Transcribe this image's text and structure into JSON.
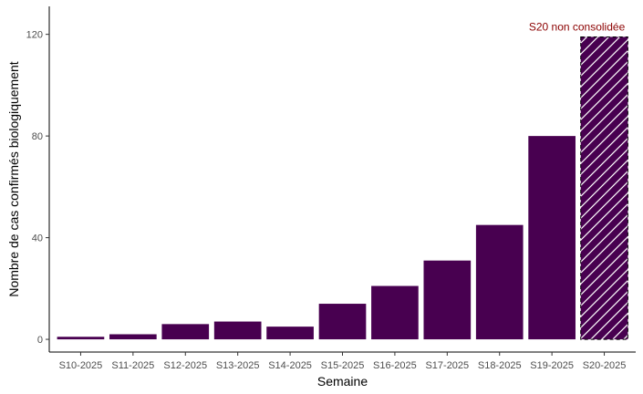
{
  "chart_data": {
    "type": "bar",
    "title": "",
    "xlabel": "Semaine",
    "ylabel": "Nombre de cas confirmés biologiquement",
    "categories": [
      "S10-2025",
      "S11-2025",
      "S12-2025",
      "S13-2025",
      "S14-2025",
      "S15-2025",
      "S16-2025",
      "S17-2025",
      "S18-2025",
      "S19-2025",
      "S20-2025"
    ],
    "values": [
      1,
      2,
      6,
      7,
      5,
      14,
      21,
      31,
      45,
      80,
      119
    ],
    "hatched": [
      false,
      false,
      false,
      false,
      false,
      false,
      false,
      false,
      false,
      false,
      true
    ],
    "ylim": [
      -5,
      131
    ],
    "yticks": [
      0,
      40,
      80,
      120
    ],
    "grid": false,
    "legend": "none",
    "annotation": {
      "text": "S20 non consolidée",
      "category": "S20-2025",
      "y": 123
    },
    "colors": {
      "bar": "#480050",
      "annotation": "#8b0000",
      "axis": "#000000",
      "hatch": "#ffffff"
    }
  }
}
